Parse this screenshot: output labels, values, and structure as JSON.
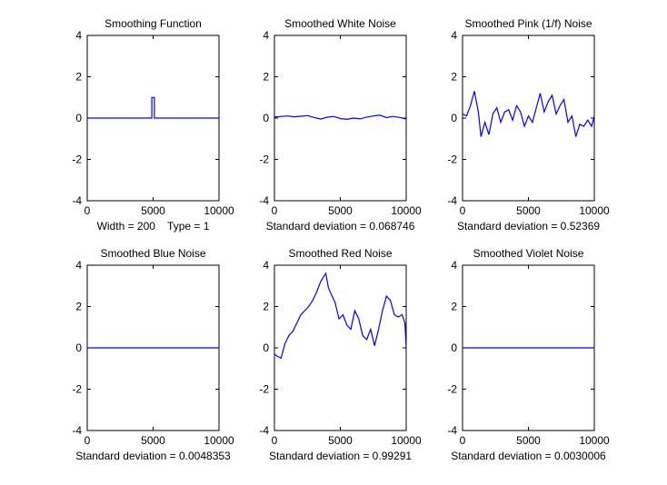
{
  "chart_data": [
    {
      "type": "line",
      "title": "Smoothing Function",
      "caption": "Width = 200    Type = 1",
      "xlim": [
        0,
        10000
      ],
      "ylim": [
        -4,
        4
      ],
      "xticks": [
        "0",
        "5000",
        "10000"
      ],
      "yticks": [
        "4",
        "2",
        "0",
        "-2",
        "-4"
      ],
      "line_color": "#0000ff",
      "series": [
        {
          "x": [
            0,
            4900,
            4900,
            5100,
            5100,
            10000
          ],
          "y": [
            0,
            0,
            1,
            1,
            0,
            0
          ]
        }
      ]
    },
    {
      "type": "line",
      "title": "Smoothed White Noise",
      "caption": "Standard deviation = 0.068746",
      "xlim": [
        0,
        10000
      ],
      "ylim": [
        -4,
        4
      ],
      "xticks": [
        "0",
        "5000",
        "10000"
      ],
      "yticks": [
        "4",
        "2",
        "0",
        "-2",
        "-4"
      ],
      "line_color": "#0000ff",
      "series": [
        {
          "x": [
            0,
            500,
            1000,
            1500,
            2000,
            2500,
            3000,
            3500,
            4000,
            4500,
            5000,
            5500,
            6000,
            6500,
            7000,
            7500,
            8000,
            8500,
            9000,
            9500,
            10000
          ],
          "y": [
            0.05,
            0.08,
            0.1,
            0.06,
            0.09,
            0.12,
            0.03,
            -0.05,
            0.04,
            0.08,
            -0.02,
            -0.06,
            0.0,
            -0.04,
            0.05,
            0.1,
            0.14,
            0.02,
            0.08,
            0.03,
            -0.05
          ]
        }
      ]
    },
    {
      "type": "line",
      "title": "Smoothed Pink (1/f) Noise",
      "caption": "Standard deviation = 0.52369",
      "xlim": [
        0,
        10000
      ],
      "ylim": [
        -4,
        4
      ],
      "xticks": [
        "0",
        "5000",
        "10000"
      ],
      "yticks": [
        "4",
        "2",
        "0",
        "-2",
        "-4"
      ],
      "line_color": "#0000ff",
      "series": [
        {
          "x": [
            0,
            300,
            600,
            900,
            1200,
            1400,
            1700,
            2000,
            2300,
            2600,
            2900,
            3200,
            3500,
            3800,
            4100,
            4400,
            4700,
            5000,
            5300,
            5600,
            5900,
            6200,
            6500,
            6800,
            7100,
            7400,
            7700,
            8000,
            8300,
            8600,
            8900,
            9200,
            9500,
            9800,
            10000
          ],
          "y": [
            0.2,
            0.1,
            0.6,
            1.3,
            0.3,
            -0.9,
            -0.2,
            -0.8,
            0.2,
            0.5,
            -0.2,
            0.3,
            0.4,
            -0.1,
            0.6,
            0.3,
            -0.4,
            0.1,
            -0.2,
            0.5,
            1.2,
            0.3,
            0.8,
            1.1,
            0.2,
            0.6,
            0.9,
            -0.2,
            0.1,
            -0.9,
            -0.3,
            -0.4,
            -0.1,
            -0.4,
            0.1
          ]
        }
      ]
    },
    {
      "type": "line",
      "title": "Smoothed Blue Noise",
      "caption": "Standard deviation = 0.0048353",
      "xlim": [
        0,
        10000
      ],
      "ylim": [
        -4,
        4
      ],
      "xticks": [
        "0",
        "5000",
        "10000"
      ],
      "yticks": [
        "4",
        "2",
        "0",
        "-2",
        "-4"
      ],
      "line_color": "#0000ff",
      "series": [
        {
          "x": [
            0,
            10000
          ],
          "y": [
            0,
            0
          ]
        }
      ]
    },
    {
      "type": "line",
      "title": "Smoothed Red Noise",
      "caption": "Standard deviation = 0.99291",
      "xlim": [
        0,
        10000
      ],
      "ylim": [
        -4,
        4
      ],
      "xticks": [
        "0",
        "5000",
        "10000"
      ],
      "yticks": [
        "4",
        "2",
        "0",
        "-2",
        "-4"
      ],
      "line_color": "#0000ff",
      "series": [
        {
          "x": [
            0,
            200,
            500,
            800,
            1100,
            1400,
            1700,
            2000,
            2300,
            2600,
            2900,
            3200,
            3500,
            3700,
            3900,
            4100,
            4300,
            4600,
            4900,
            5200,
            5500,
            5800,
            6100,
            6400,
            6700,
            7000,
            7300,
            7600,
            7900,
            8200,
            8500,
            8800,
            9100,
            9400,
            9700,
            9900,
            10000
          ],
          "y": [
            -0.3,
            -0.4,
            -0.5,
            0.2,
            0.6,
            0.8,
            1.2,
            1.6,
            1.8,
            2.0,
            2.3,
            2.7,
            3.2,
            3.4,
            3.6,
            2.9,
            2.6,
            2.2,
            1.4,
            1.6,
            1.1,
            0.9,
            1.8,
            1.4,
            0.6,
            0.4,
            0.9,
            0.1,
            0.9,
            1.8,
            2.5,
            2.3,
            1.6,
            1.5,
            1.6,
            1.2,
            0.0
          ]
        }
      ]
    },
    {
      "type": "line",
      "title": "Smoothed Violet Noise",
      "caption": "Standard deviation = 0.0030006",
      "xlim": [
        0,
        10000
      ],
      "ylim": [
        -4,
        4
      ],
      "xticks": [
        "0",
        "5000",
        "10000"
      ],
      "yticks": [
        "4",
        "2",
        "0",
        "-2",
        "-4"
      ],
      "line_color": "#0000ff",
      "series": [
        {
          "x": [
            0,
            10000
          ],
          "y": [
            0,
            0
          ]
        }
      ]
    }
  ]
}
